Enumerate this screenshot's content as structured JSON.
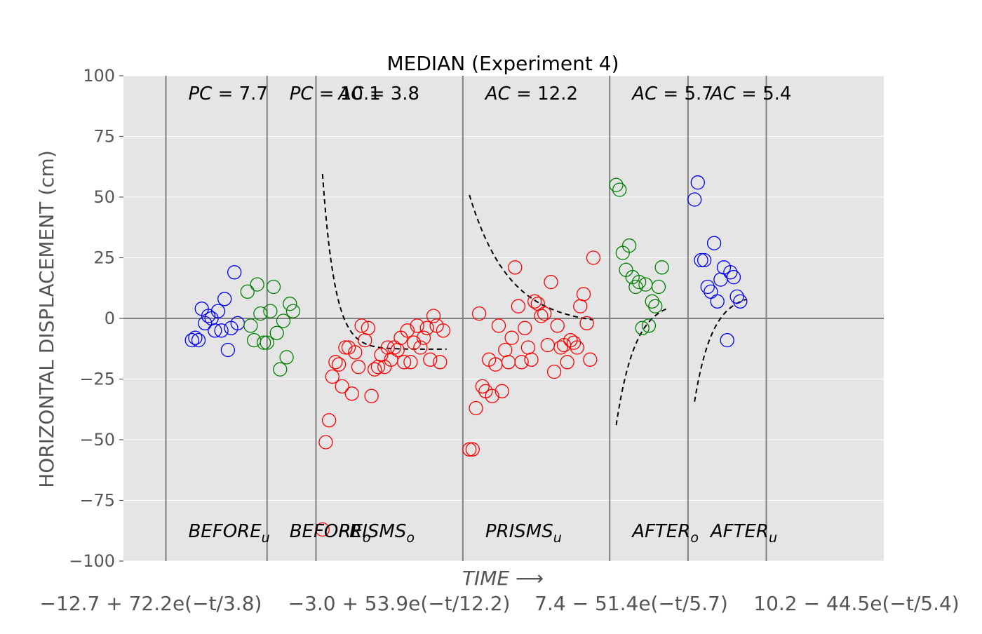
{
  "chart_data": {
    "type": "scatter",
    "title": "MEDIAN (Experiment 4)",
    "ylabel": "HORIZONTAL DISPLACEMENT (cm)",
    "xlabel": "TIME ⟶",
    "ylim": [
      -100,
      100
    ],
    "yticks": [
      100,
      75,
      50,
      25,
      0,
      -25,
      -50,
      -75,
      -100
    ],
    "ytick_labels": [
      "100",
      "75",
      "50",
      "25",
      "0",
      "−25",
      "−50",
      "−75",
      "−100"
    ],
    "grid": true,
    "boundaries": [
      0,
      31,
      46,
      91,
      136,
      160,
      184
    ],
    "xlim": [
      -13,
      220
    ],
    "fit_equations": [
      "−12.7 + 72.2e(−t/3.8)",
      "−3.0 + 53.9e(−t/12.2)",
      "7.4 − 51.4e(−t/5.7)",
      "10.2 − 44.5e(−t/5.4)"
    ],
    "phases": [
      {
        "name": "BEFORE_u",
        "label_main": "BEFORE",
        "label_sub": "u",
        "stat": "PC = 7.7",
        "stat_main": "PC",
        "stat_value": "7.7",
        "color": "#0000ff",
        "start": 0,
        "points": [
          [
            8,
            -9
          ],
          [
            9,
            -8
          ],
          [
            10,
            -9
          ],
          [
            11,
            4
          ],
          [
            12,
            -2
          ],
          [
            13,
            1
          ],
          [
            14,
            0
          ],
          [
            15,
            -5
          ],
          [
            16,
            3
          ],
          [
            17,
            -5
          ],
          [
            18,
            8
          ],
          [
            19,
            -13
          ],
          [
            20,
            -4
          ],
          [
            21,
            19
          ],
          [
            22,
            -2
          ]
        ]
      },
      {
        "name": "BEFORE_o",
        "label_main": "BEFORE",
        "label_sub": "o",
        "stat": "PC = 10.1",
        "stat_main": "PC",
        "stat_value": "10.1",
        "color": "#008000",
        "start": 31,
        "points": [
          [
            25,
            11
          ],
          [
            26,
            -3
          ],
          [
            27,
            -9
          ],
          [
            28,
            14
          ],
          [
            29,
            2
          ],
          [
            30,
            -10
          ],
          [
            31,
            -10
          ],
          [
            32,
            3
          ],
          [
            33,
            13
          ],
          [
            34,
            -6
          ],
          [
            35,
            -21
          ],
          [
            36,
            -1
          ],
          [
            37,
            -16
          ],
          [
            38,
            6
          ],
          [
            39,
            3
          ]
        ]
      },
      {
        "name": "PRISMS_o",
        "label_main": "PRISMS",
        "label_sub": "o",
        "stat": "AC = 3.8",
        "stat_main": "AC",
        "stat_value": "3.8",
        "color": "#ff0000",
        "start": 46,
        "fit": {
          "c": -12.7,
          "a": 72.2,
          "tau": 3.8,
          "t0": 48,
          "t1": 86
        },
        "points": [
          [
            48,
            -87
          ],
          [
            49,
            -51
          ],
          [
            50,
            -42
          ],
          [
            51,
            -24
          ],
          [
            52,
            -18
          ],
          [
            53,
            -19
          ],
          [
            54,
            -28
          ],
          [
            55,
            -12
          ],
          [
            56,
            -12
          ],
          [
            57,
            -31
          ],
          [
            58,
            -14
          ],
          [
            59,
            -20
          ],
          [
            60,
            -3
          ],
          [
            61,
            -9
          ],
          [
            62,
            -4
          ],
          [
            63,
            -32
          ],
          [
            64,
            -21
          ],
          [
            65,
            -20
          ],
          [
            66,
            -15
          ],
          [
            67,
            -20
          ],
          [
            68,
            -12
          ],
          [
            69,
            -17
          ],
          [
            70,
            -12
          ],
          [
            71,
            -13
          ],
          [
            72,
            -8
          ],
          [
            73,
            -18
          ],
          [
            74,
            -5
          ],
          [
            75,
            -18
          ],
          [
            76,
            -10
          ],
          [
            77,
            -3
          ],
          [
            78,
            -12
          ],
          [
            79,
            -8
          ],
          [
            80,
            -4
          ],
          [
            81,
            -17
          ],
          [
            82,
            1
          ],
          [
            83,
            -3
          ],
          [
            84,
            -18
          ],
          [
            85,
            -5
          ]
        ]
      },
      {
        "name": "PRISMS_u",
        "label_main": "PRISMS",
        "label_sub": "u",
        "stat": "AC = 12.2",
        "stat_main": "AC",
        "stat_value": "12.2",
        "color": "#ff0000",
        "start": 91,
        "fit": {
          "c": -3.0,
          "a": 53.9,
          "tau": 12.2,
          "t0": 93,
          "t1": 131
        },
        "points": [
          [
            93,
            -54
          ],
          [
            94,
            -54
          ],
          [
            95,
            -37
          ],
          [
            96,
            2
          ],
          [
            97,
            -28
          ],
          [
            98,
            -30
          ],
          [
            99,
            -17
          ],
          [
            100,
            -32
          ],
          [
            101,
            -19
          ],
          [
            102,
            -3
          ],
          [
            103,
            -30
          ],
          [
            104,
            -13
          ],
          [
            105,
            -18
          ],
          [
            106,
            -8
          ],
          [
            107,
            21
          ],
          [
            108,
            5
          ],
          [
            109,
            -18
          ],
          [
            110,
            -4
          ],
          [
            111,
            -12
          ],
          [
            112,
            -17
          ],
          [
            113,
            7
          ],
          [
            114,
            6
          ],
          [
            115,
            1
          ],
          [
            116,
            2
          ],
          [
            117,
            -11
          ],
          [
            118,
            15
          ],
          [
            119,
            -22
          ],
          [
            120,
            -3
          ],
          [
            121,
            -12
          ],
          [
            122,
            -11
          ],
          [
            123,
            -18
          ],
          [
            124,
            -9
          ],
          [
            125,
            -10
          ],
          [
            126,
            -12
          ],
          [
            127,
            5
          ],
          [
            128,
            10
          ],
          [
            129,
            -2
          ],
          [
            130,
            -17
          ],
          [
            131,
            25
          ]
        ]
      },
      {
        "name": "AFTER_o",
        "label_main": "AFTER",
        "label_sub": "o",
        "stat": "AC = 5.7",
        "stat_main": "AC",
        "stat_value": "5.7",
        "color": "#008000",
        "start": 136,
        "fit": {
          "c": 7.4,
          "a": -51.4,
          "tau": 5.7,
          "t0": 138,
          "t1": 154
        },
        "points": [
          [
            138,
            55
          ],
          [
            139,
            53
          ],
          [
            140,
            27
          ],
          [
            141,
            20
          ],
          [
            142,
            30
          ],
          [
            143,
            17
          ],
          [
            144,
            13
          ],
          [
            145,
            15
          ],
          [
            146,
            -4
          ],
          [
            147,
            14
          ],
          [
            148,
            -3
          ],
          [
            149,
            7
          ],
          [
            150,
            5
          ],
          [
            151,
            13
          ],
          [
            152,
            21
          ]
        ]
      },
      {
        "name": "AFTER_u",
        "label_main": "AFTER",
        "label_sub": "u",
        "stat": "AC = 5.4",
        "stat_main": "AC",
        "stat_value": "5.4",
        "color": "#0000ff",
        "start": 160,
        "fit": {
          "c": 10.2,
          "a": -44.5,
          "tau": 5.4,
          "t0": 162,
          "t1": 178
        },
        "points": [
          [
            162,
            49
          ],
          [
            163,
            56
          ],
          [
            164,
            24
          ],
          [
            165,
            24
          ],
          [
            166,
            13
          ],
          [
            167,
            11
          ],
          [
            168,
            31
          ],
          [
            169,
            7
          ],
          [
            170,
            16
          ],
          [
            171,
            21
          ],
          [
            172,
            -9
          ],
          [
            173,
            19
          ],
          [
            174,
            17
          ],
          [
            175,
            9
          ],
          [
            176,
            7
          ]
        ]
      }
    ]
  }
}
